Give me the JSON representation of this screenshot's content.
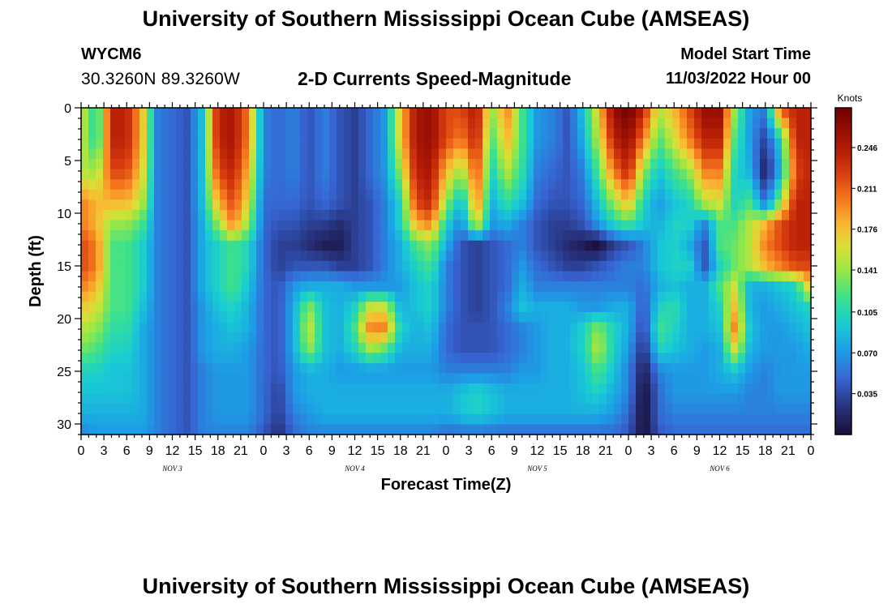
{
  "header": {
    "title": "University of Southern Mississippi Ocean Cube (AMSEAS)",
    "station_id": "WYCM6",
    "station_coords": "30.3260N  89.3260W",
    "chart_title": "2-D Currents Speed-Magnitude",
    "model_start_label": "Model Start Time",
    "model_start_value": "11/03/2022 Hour 00"
  },
  "footer": {
    "title": "University of Southern Mississippi Ocean Cube (AMSEAS)"
  },
  "chart_data": {
    "type": "heatmap",
    "title": "2-D Currents Speed-Magnitude",
    "xlabel": "Forecast Time(Z)",
    "ylabel": "Depth (ft)",
    "x_tick_labels": [
      "0",
      "3",
      "6",
      "9",
      "12",
      "15",
      "18",
      "21",
      "0",
      "3",
      "6",
      "9",
      "12",
      "15",
      "18",
      "21",
      "0",
      "3",
      "6",
      "9",
      "12",
      "15",
      "18",
      "21",
      "0",
      "3",
      "6",
      "9",
      "12",
      "15",
      "18",
      "21",
      "0"
    ],
    "x_range_hours": [
      0,
      96
    ],
    "day_labels": [
      {
        "label": "NOV 3",
        "center_hour": 12
      },
      {
        "label": "NOV 4",
        "center_hour": 36
      },
      {
        "label": "NOV 5",
        "center_hour": 60
      },
      {
        "label": "NOV 6",
        "center_hour": 84
      }
    ],
    "y_ticks": [
      "0",
      "5",
      "10",
      "15",
      "20",
      "25",
      "30"
    ],
    "y_range_ft": [
      0,
      31
    ],
    "y_inverted": true,
    "colorbar": {
      "label": "Knots",
      "ticks": [
        "0.246",
        "0.211",
        "0.176",
        "0.141",
        "0.105",
        "0.070",
        "0.035"
      ],
      "range": [
        0,
        0.28
      ]
    },
    "depth_levels_ft": [
      0,
      3,
      6,
      9,
      11,
      13,
      15,
      17,
      19,
      21,
      23,
      25,
      27,
      29,
      31
    ],
    "time_hours": [
      0,
      2,
      4,
      6,
      8,
      10,
      12,
      14,
      16,
      18,
      20,
      22,
      24,
      26,
      28,
      30,
      32,
      34,
      36,
      38,
      40,
      42,
      44,
      46,
      48,
      50,
      52,
      54,
      56,
      58,
      60,
      62,
      64,
      66,
      68,
      70,
      72,
      74,
      76,
      78,
      80,
      82,
      84,
      86,
      88,
      90,
      92,
      94,
      96
    ],
    "speed_knots": [
      [
        0.16,
        0.1,
        0.24,
        0.24,
        0.18,
        0.06,
        0.05,
        0.04,
        0.09,
        0.24,
        0.25,
        0.2,
        0.06,
        0.05,
        0.06,
        0.04,
        0.06,
        0.04,
        0.03,
        0.05,
        0.07,
        0.17,
        0.25,
        0.26,
        0.22,
        0.22,
        0.25,
        0.14,
        0.2,
        0.12,
        0.07,
        0.06,
        0.04,
        0.09,
        0.17,
        0.26,
        0.28,
        0.24,
        0.15,
        0.18,
        0.22,
        0.26,
        0.26,
        0.14,
        0.07,
        0.06,
        0.22,
        0.24,
        0.24
      ],
      [
        0.16,
        0.1,
        0.24,
        0.24,
        0.18,
        0.06,
        0.05,
        0.04,
        0.09,
        0.24,
        0.25,
        0.2,
        0.06,
        0.05,
        0.06,
        0.04,
        0.06,
        0.04,
        0.03,
        0.05,
        0.07,
        0.17,
        0.25,
        0.26,
        0.22,
        0.2,
        0.24,
        0.12,
        0.18,
        0.12,
        0.07,
        0.06,
        0.04,
        0.08,
        0.15,
        0.24,
        0.26,
        0.2,
        0.12,
        0.16,
        0.2,
        0.24,
        0.24,
        0.12,
        0.07,
        0.03,
        0.1,
        0.24,
        0.24
      ],
      [
        0.15,
        0.14,
        0.22,
        0.22,
        0.17,
        0.06,
        0.05,
        0.04,
        0.09,
        0.22,
        0.24,
        0.18,
        0.06,
        0.05,
        0.06,
        0.04,
        0.06,
        0.04,
        0.03,
        0.05,
        0.07,
        0.14,
        0.24,
        0.25,
        0.18,
        0.14,
        0.22,
        0.1,
        0.15,
        0.11,
        0.06,
        0.05,
        0.04,
        0.06,
        0.12,
        0.2,
        0.24,
        0.14,
        0.09,
        0.12,
        0.14,
        0.2,
        0.2,
        0.1,
        0.08,
        0.01,
        0.08,
        0.22,
        0.24
      ],
      [
        0.2,
        0.18,
        0.18,
        0.18,
        0.15,
        0.06,
        0.05,
        0.04,
        0.09,
        0.18,
        0.22,
        0.16,
        0.05,
        0.05,
        0.05,
        0.04,
        0.05,
        0.04,
        0.03,
        0.04,
        0.06,
        0.1,
        0.22,
        0.24,
        0.14,
        0.08,
        0.2,
        0.08,
        0.11,
        0.09,
        0.05,
        0.04,
        0.04,
        0.05,
        0.09,
        0.14,
        0.18,
        0.1,
        0.07,
        0.09,
        0.1,
        0.15,
        0.16,
        0.1,
        0.12,
        0.05,
        0.14,
        0.24,
        0.24
      ],
      [
        0.2,
        0.18,
        0.14,
        0.14,
        0.12,
        0.06,
        0.05,
        0.04,
        0.08,
        0.14,
        0.2,
        0.14,
        0.05,
        0.04,
        0.04,
        0.03,
        0.03,
        0.02,
        0.03,
        0.04,
        0.06,
        0.1,
        0.18,
        0.2,
        0.1,
        0.06,
        0.16,
        0.07,
        0.08,
        0.06,
        0.04,
        0.03,
        0.03,
        0.04,
        0.07,
        0.1,
        0.12,
        0.09,
        0.08,
        0.1,
        0.1,
        0.06,
        0.12,
        0.12,
        0.15,
        0.18,
        0.22,
        0.24,
        0.24
      ],
      [
        0.22,
        0.2,
        0.12,
        0.12,
        0.1,
        0.06,
        0.05,
        0.04,
        0.08,
        0.1,
        0.12,
        0.1,
        0.05,
        0.03,
        0.03,
        0.02,
        0.01,
        0.01,
        0.03,
        0.04,
        0.06,
        0.08,
        0.12,
        0.14,
        0.08,
        0.04,
        0.03,
        0.04,
        0.05,
        0.06,
        0.04,
        0.03,
        0.02,
        0.01,
        0.0,
        0.03,
        0.04,
        0.06,
        0.09,
        0.1,
        0.08,
        0.04,
        0.12,
        0.13,
        0.15,
        0.2,
        0.22,
        0.24,
        0.24
      ],
      [
        0.22,
        0.2,
        0.12,
        0.12,
        0.1,
        0.06,
        0.05,
        0.04,
        0.08,
        0.1,
        0.12,
        0.1,
        0.05,
        0.03,
        0.04,
        0.04,
        0.04,
        0.03,
        0.03,
        0.04,
        0.06,
        0.08,
        0.1,
        0.12,
        0.06,
        0.04,
        0.03,
        0.04,
        0.05,
        0.07,
        0.05,
        0.04,
        0.03,
        0.03,
        0.04,
        0.05,
        0.06,
        0.06,
        0.09,
        0.1,
        0.1,
        0.04,
        0.1,
        0.13,
        0.15,
        0.18,
        0.2,
        0.22,
        0.22
      ],
      [
        0.2,
        0.18,
        0.12,
        0.12,
        0.1,
        0.06,
        0.05,
        0.04,
        0.08,
        0.1,
        0.12,
        0.09,
        0.05,
        0.04,
        0.07,
        0.08,
        0.08,
        0.08,
        0.07,
        0.07,
        0.07,
        0.07,
        0.09,
        0.1,
        0.06,
        0.04,
        0.03,
        0.04,
        0.05,
        0.08,
        0.06,
        0.06,
        0.06,
        0.06,
        0.06,
        0.06,
        0.06,
        0.05,
        0.08,
        0.09,
        0.08,
        0.08,
        0.12,
        0.16,
        0.08,
        0.08,
        0.09,
        0.1,
        0.18
      ],
      [
        0.17,
        0.16,
        0.12,
        0.12,
        0.09,
        0.06,
        0.05,
        0.04,
        0.07,
        0.09,
        0.1,
        0.08,
        0.05,
        0.04,
        0.08,
        0.14,
        0.09,
        0.08,
        0.1,
        0.16,
        0.16,
        0.08,
        0.09,
        0.1,
        0.06,
        0.04,
        0.03,
        0.04,
        0.06,
        0.09,
        0.08,
        0.08,
        0.08,
        0.07,
        0.07,
        0.08,
        0.08,
        0.04,
        0.1,
        0.11,
        0.08,
        0.08,
        0.1,
        0.18,
        0.08,
        0.07,
        0.08,
        0.09,
        0.1
      ],
      [
        0.15,
        0.14,
        0.11,
        0.11,
        0.08,
        0.06,
        0.05,
        0.04,
        0.07,
        0.08,
        0.09,
        0.08,
        0.05,
        0.04,
        0.08,
        0.16,
        0.09,
        0.08,
        0.12,
        0.2,
        0.2,
        0.1,
        0.08,
        0.09,
        0.05,
        0.04,
        0.04,
        0.04,
        0.05,
        0.06,
        0.07,
        0.08,
        0.08,
        0.1,
        0.14,
        0.1,
        0.08,
        0.03,
        0.12,
        0.1,
        0.08,
        0.08,
        0.09,
        0.2,
        0.09,
        0.07,
        0.07,
        0.08,
        0.09
      ],
      [
        0.13,
        0.12,
        0.1,
        0.1,
        0.08,
        0.06,
        0.05,
        0.04,
        0.07,
        0.08,
        0.08,
        0.07,
        0.05,
        0.04,
        0.08,
        0.14,
        0.09,
        0.08,
        0.1,
        0.14,
        0.12,
        0.08,
        0.08,
        0.08,
        0.05,
        0.04,
        0.04,
        0.04,
        0.05,
        0.06,
        0.07,
        0.08,
        0.08,
        0.1,
        0.15,
        0.1,
        0.07,
        0.02,
        0.1,
        0.09,
        0.08,
        0.07,
        0.08,
        0.16,
        0.08,
        0.07,
        0.07,
        0.07,
        0.08
      ],
      [
        0.1,
        0.1,
        0.09,
        0.09,
        0.08,
        0.06,
        0.05,
        0.04,
        0.06,
        0.07,
        0.07,
        0.07,
        0.05,
        0.04,
        0.07,
        0.08,
        0.08,
        0.07,
        0.07,
        0.07,
        0.07,
        0.07,
        0.07,
        0.07,
        0.06,
        0.06,
        0.06,
        0.06,
        0.06,
        0.07,
        0.07,
        0.08,
        0.08,
        0.09,
        0.12,
        0.09,
        0.06,
        0.01,
        0.06,
        0.07,
        0.07,
        0.07,
        0.08,
        0.09,
        0.07,
        0.06,
        0.07,
        0.07,
        0.07
      ],
      [
        0.09,
        0.09,
        0.09,
        0.09,
        0.08,
        0.06,
        0.05,
        0.04,
        0.06,
        0.07,
        0.07,
        0.07,
        0.05,
        0.03,
        0.07,
        0.08,
        0.08,
        0.08,
        0.08,
        0.08,
        0.08,
        0.08,
        0.08,
        0.08,
        0.08,
        0.09,
        0.1,
        0.09,
        0.08,
        0.08,
        0.08,
        0.08,
        0.08,
        0.09,
        0.1,
        0.08,
        0.06,
        0.0,
        0.05,
        0.07,
        0.07,
        0.07,
        0.07,
        0.07,
        0.06,
        0.06,
        0.07,
        0.07,
        0.07
      ],
      [
        0.08,
        0.08,
        0.08,
        0.08,
        0.08,
        0.06,
        0.05,
        0.04,
        0.06,
        0.07,
        0.07,
        0.07,
        0.05,
        0.03,
        0.06,
        0.07,
        0.08,
        0.08,
        0.08,
        0.08,
        0.08,
        0.08,
        0.08,
        0.08,
        0.08,
        0.09,
        0.1,
        0.09,
        0.08,
        0.08,
        0.08,
        0.08,
        0.08,
        0.08,
        0.08,
        0.07,
        0.05,
        0.0,
        0.05,
        0.06,
        0.06,
        0.06,
        0.06,
        0.06,
        0.06,
        0.06,
        0.06,
        0.06,
        0.06
      ],
      [
        0.06,
        0.07,
        0.07,
        0.07,
        0.07,
        0.06,
        0.05,
        0.04,
        0.06,
        0.06,
        0.06,
        0.06,
        0.04,
        0.02,
        0.05,
        0.06,
        0.06,
        0.06,
        0.06,
        0.06,
        0.06,
        0.06,
        0.06,
        0.06,
        0.05,
        0.05,
        0.05,
        0.05,
        0.05,
        0.05,
        0.05,
        0.05,
        0.05,
        0.05,
        0.05,
        0.05,
        0.04,
        0.0,
        0.04,
        0.05,
        0.05,
        0.05,
        0.05,
        0.05,
        0.05,
        0.05,
        0.05,
        0.05,
        0.05
      ]
    ]
  }
}
